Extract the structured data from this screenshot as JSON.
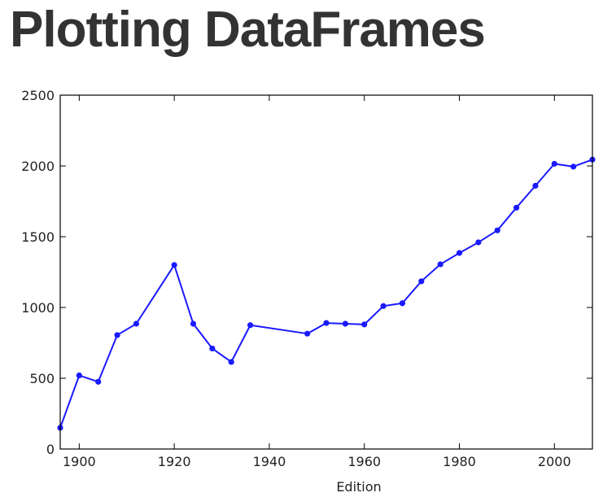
{
  "slide": {
    "title": "Plotting DataFrames"
  },
  "chart_data": {
    "type": "line",
    "title": "",
    "xlabel": "Edition",
    "ylabel": "",
    "xlim": [
      1896,
      2008
    ],
    "ylim": [
      0,
      2500
    ],
    "x_ticks": [
      1900,
      1920,
      1940,
      1960,
      1980,
      2000
    ],
    "y_ticks": [
      0,
      500,
      1000,
      1500,
      2000,
      2500
    ],
    "grid": false,
    "legend": "none",
    "series": [
      {
        "color": "#1a1aff",
        "marker": "circle",
        "x": [
          1896,
          1900,
          1904,
          1908,
          1912,
          1920,
          1924,
          1928,
          1932,
          1936,
          1948,
          1952,
          1956,
          1960,
          1964,
          1968,
          1972,
          1976,
          1980,
          1984,
          1988,
          1992,
          1996,
          2000,
          2004,
          2008
        ],
        "y": [
          150,
          520,
          475,
          805,
          885,
          1300,
          885,
          710,
          615,
          875,
          815,
          890,
          885,
          880,
          1010,
          1030,
          1185,
          1305,
          1385,
          1460,
          1545,
          1705,
          1860,
          2015,
          1995,
          2045
        ]
      }
    ]
  }
}
